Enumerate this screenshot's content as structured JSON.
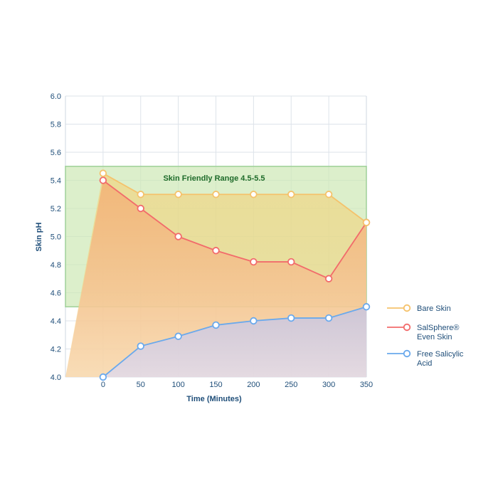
{
  "chart_data": {
    "type": "area",
    "x": [
      0,
      50,
      100,
      150,
      200,
      250,
      300,
      350
    ],
    "xlabel": "Time (Minutes)",
    "ylabel": "Skin pH",
    "xlim": [
      -50,
      350
    ],
    "ylim": [
      4.0,
      6.0
    ],
    "xticks": [
      "0",
      "50",
      "100",
      "150",
      "200",
      "250",
      "300",
      "350"
    ],
    "yticks": [
      "4.0",
      "4.2",
      "4.4",
      "4.6",
      "4.8",
      "5.0",
      "5.2",
      "5.4",
      "5.6",
      "5.8",
      "6.0"
    ],
    "grid": true,
    "band": {
      "label": "Skin Friendly Range 4.5-5.5",
      "from": 4.5,
      "to": 5.5,
      "color": "#cde8b5"
    },
    "series": [
      {
        "name": "Bare Skin",
        "values": [
          5.45,
          5.3,
          5.3,
          5.3,
          5.3,
          5.3,
          5.3,
          5.1
        ],
        "color": "#f5c26b",
        "fill": "#f2d88a"
      },
      {
        "name": "SalSphere® Even Skin",
        "values": [
          5.4,
          5.2,
          5.0,
          4.9,
          4.82,
          4.82,
          4.7,
          5.1
        ],
        "color": "#f26b6b",
        "fill": "#f49a8e"
      },
      {
        "name": "Free Salicylic Acid",
        "values": [
          4.0,
          4.22,
          4.29,
          4.37,
          4.4,
          4.42,
          4.42,
          4.5
        ],
        "color": "#6aa9ec",
        "fill": "#c9c9e6"
      }
    ],
    "legend": {
      "position": "right",
      "labels": [
        [
          "Bare Skin"
        ],
        [
          "SalSphere®",
          "Even Skin"
        ],
        [
          "Free Salicylic",
          "Acid"
        ]
      ]
    }
  }
}
